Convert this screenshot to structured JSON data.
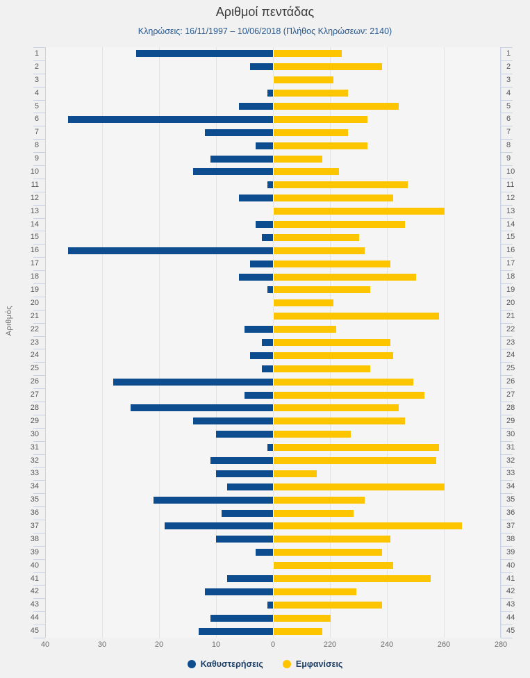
{
  "header": {
    "title": "Αριθμοί πεντάδας",
    "subtitle": "Κληρώσεις: 16/11/1997 – 10/06/2018 (Πλήθος Κληρώσεων: 2140)"
  },
  "colors": {
    "delay_bar": "#0d4d8f",
    "appearance_bar": "#fdc400",
    "plot_background": "#f5f5f5",
    "page_background": "#f1f1f1",
    "gridline": "#e3e3e3",
    "axis": "#c9d1e4",
    "legend_text": "#1f4066",
    "subtitle_text": "#27588e"
  },
  "chart_data": {
    "type": "bar",
    "orientation": "horizontal-diverging",
    "title": "Αριθμοί πεντάδας",
    "subtitle": "Κληρώσεις: 16/11/1997 – 10/06/2018 (Πλήθος Κληρώσεων: 2140)",
    "ylabel": "Αριθμός",
    "grid": true,
    "legend_position": "bottom",
    "categories": [
      1,
      2,
      3,
      4,
      5,
      6,
      7,
      8,
      9,
      10,
      11,
      12,
      13,
      14,
      15,
      16,
      17,
      18,
      19,
      20,
      21,
      22,
      23,
      24,
      25,
      26,
      27,
      28,
      29,
      30,
      31,
      32,
      33,
      34,
      35,
      36,
      37,
      38,
      39,
      40,
      41,
      42,
      43,
      44,
      45
    ],
    "series": [
      {
        "name": "Καθυστερήσεις",
        "color": "#0d4d8f",
        "direction": "left",
        "axis": {
          "min": 0,
          "max": 40,
          "ticks": [
            40,
            30,
            20,
            10,
            0
          ]
        },
        "values": [
          24,
          4,
          0,
          1,
          6,
          36,
          12,
          3,
          11,
          14,
          1,
          6,
          0,
          3,
          2,
          36,
          4,
          6,
          1,
          0,
          0,
          5,
          2,
          4,
          2,
          28,
          5,
          25,
          14,
          10,
          1,
          11,
          10,
          8,
          21,
          9,
          19,
          10,
          3,
          0,
          8,
          12,
          1,
          11,
          13
        ]
      },
      {
        "name": "Εμφανίσεις",
        "color": "#fdc400",
        "direction": "right",
        "axis": {
          "min": 200,
          "max": 280,
          "ticks": [
            220,
            240,
            260,
            280
          ]
        },
        "values": [
          224,
          238,
          221,
          226,
          244,
          233,
          226,
          233,
          217,
          223,
          247,
          242,
          260,
          246,
          230,
          232,
          241,
          250,
          234,
          221,
          258,
          222,
          241,
          242,
          234,
          249,
          253,
          244,
          246,
          227,
          258,
          257,
          215,
          260,
          232,
          228,
          266,
          241,
          238,
          242,
          255,
          229,
          238,
          220,
          217
        ]
      }
    ]
  }
}
